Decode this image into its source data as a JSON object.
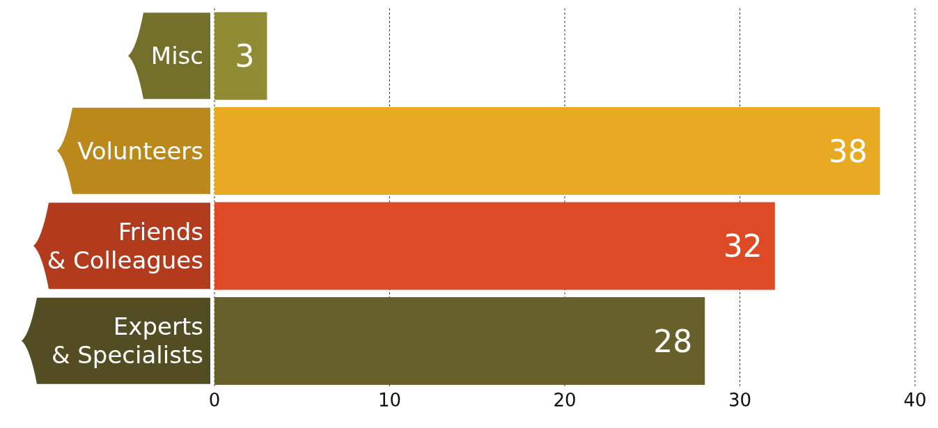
{
  "chart_data": {
    "type": "bar",
    "orientation": "horizontal",
    "categories": [
      "Misc",
      "Volunteers",
      "Friends\n& Colleagues",
      "Experts\n& Specialists"
    ],
    "values": [
      3,
      38,
      32,
      28
    ],
    "colors": [
      "#8f8c34",
      "#e8aa22",
      "#de4a26",
      "#67602a"
    ],
    "xlim": [
      0,
      40
    ],
    "xticks": [
      0,
      10,
      20,
      30,
      40
    ],
    "grid": "x",
    "data_labels": true
  }
}
